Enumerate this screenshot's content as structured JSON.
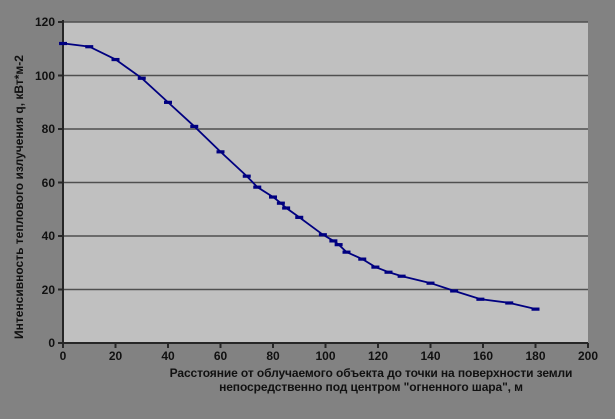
{
  "colors": {
    "chart_background": "#828282",
    "plot_background": "#c0c0c0",
    "gridline": "#4f4f4f",
    "axis": "#262626",
    "series_line": "#000080",
    "text": "#111111"
  },
  "chart_data": {
    "type": "line",
    "title": "",
    "xlabel": "Расстояние от облучаемого объекта до точки на поверхности земли непосредственно под центром \"огненного шара\", м",
    "ylabel": "Интенсивность теплового излучения q, кВт*м-2",
    "xlim": [
      0,
      200
    ],
    "ylim": [
      0,
      120
    ],
    "x_ticks": [
      0,
      20,
      40,
      60,
      80,
      100,
      120,
      140,
      160,
      180,
      200
    ],
    "y_ticks": [
      0,
      20,
      40,
      60,
      80,
      100,
      120
    ],
    "grid": "horizontal",
    "legend_position": "none",
    "marker": "horizontal-dash",
    "series": [
      {
        "name": "q",
        "color": "#000080",
        "points": [
          [
            0,
            112
          ],
          [
            10,
            110.8
          ],
          [
            20,
            106
          ],
          [
            30,
            99
          ],
          [
            40,
            90
          ],
          [
            50,
            81
          ],
          [
            60,
            71.5
          ],
          [
            70,
            62.4
          ],
          [
            74,
            58.3
          ],
          [
            80,
            54.6
          ],
          [
            83,
            52.3
          ],
          [
            85,
            50.5
          ],
          [
            90,
            47
          ],
          [
            99,
            40.5
          ],
          [
            103,
            38.2
          ],
          [
            105,
            36.8
          ],
          [
            108,
            34
          ],
          [
            114,
            31.4
          ],
          [
            119,
            28.4
          ],
          [
            124,
            26.5
          ],
          [
            129,
            25
          ],
          [
            140,
            22.4
          ],
          [
            149,
            19.5
          ],
          [
            159,
            16.4
          ],
          [
            170,
            15
          ],
          [
            180,
            12.7
          ]
        ]
      }
    ]
  }
}
